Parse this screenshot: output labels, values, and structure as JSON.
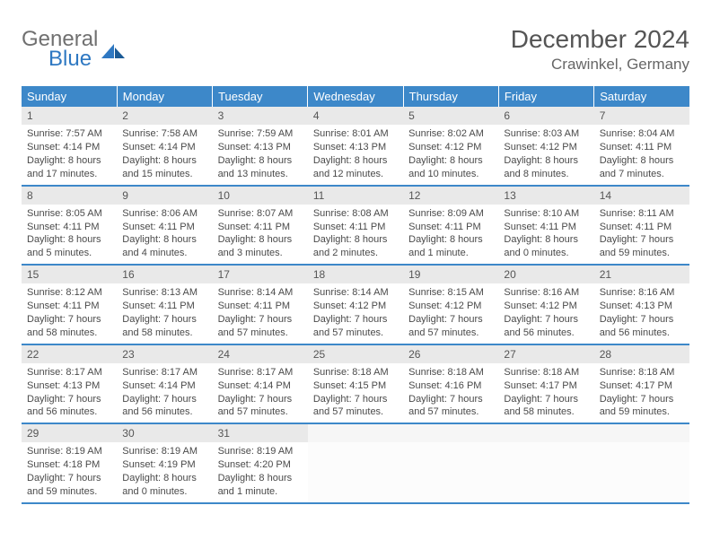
{
  "brand": {
    "general": "General",
    "blue": "Blue"
  },
  "title": "December 2024",
  "location": "Crawinkel, Germany",
  "colors": {
    "header_bg": "#3d88c9",
    "header_text": "#ffffff",
    "daynum_bg": "#e9e9e9",
    "text": "#4a4a4a",
    "logo_gray": "#707070",
    "logo_blue": "#2e78c2"
  },
  "weekdays": [
    "Sunday",
    "Monday",
    "Tuesday",
    "Wednesday",
    "Thursday",
    "Friday",
    "Saturday"
  ],
  "weeks": [
    [
      {
        "n": "1",
        "sr": "Sunrise: 7:57 AM",
        "ss": "Sunset: 4:14 PM",
        "d1": "Daylight: 8 hours",
        "d2": "and 17 minutes."
      },
      {
        "n": "2",
        "sr": "Sunrise: 7:58 AM",
        "ss": "Sunset: 4:14 PM",
        "d1": "Daylight: 8 hours",
        "d2": "and 15 minutes."
      },
      {
        "n": "3",
        "sr": "Sunrise: 7:59 AM",
        "ss": "Sunset: 4:13 PM",
        "d1": "Daylight: 8 hours",
        "d2": "and 13 minutes."
      },
      {
        "n": "4",
        "sr": "Sunrise: 8:01 AM",
        "ss": "Sunset: 4:13 PM",
        "d1": "Daylight: 8 hours",
        "d2": "and 12 minutes."
      },
      {
        "n": "5",
        "sr": "Sunrise: 8:02 AM",
        "ss": "Sunset: 4:12 PM",
        "d1": "Daylight: 8 hours",
        "d2": "and 10 minutes."
      },
      {
        "n": "6",
        "sr": "Sunrise: 8:03 AM",
        "ss": "Sunset: 4:12 PM",
        "d1": "Daylight: 8 hours",
        "d2": "and 8 minutes."
      },
      {
        "n": "7",
        "sr": "Sunrise: 8:04 AM",
        "ss": "Sunset: 4:11 PM",
        "d1": "Daylight: 8 hours",
        "d2": "and 7 minutes."
      }
    ],
    [
      {
        "n": "8",
        "sr": "Sunrise: 8:05 AM",
        "ss": "Sunset: 4:11 PM",
        "d1": "Daylight: 8 hours",
        "d2": "and 5 minutes."
      },
      {
        "n": "9",
        "sr": "Sunrise: 8:06 AM",
        "ss": "Sunset: 4:11 PM",
        "d1": "Daylight: 8 hours",
        "d2": "and 4 minutes."
      },
      {
        "n": "10",
        "sr": "Sunrise: 8:07 AM",
        "ss": "Sunset: 4:11 PM",
        "d1": "Daylight: 8 hours",
        "d2": "and 3 minutes."
      },
      {
        "n": "11",
        "sr": "Sunrise: 8:08 AM",
        "ss": "Sunset: 4:11 PM",
        "d1": "Daylight: 8 hours",
        "d2": "and 2 minutes."
      },
      {
        "n": "12",
        "sr": "Sunrise: 8:09 AM",
        "ss": "Sunset: 4:11 PM",
        "d1": "Daylight: 8 hours",
        "d2": "and 1 minute."
      },
      {
        "n": "13",
        "sr": "Sunrise: 8:10 AM",
        "ss": "Sunset: 4:11 PM",
        "d1": "Daylight: 8 hours",
        "d2": "and 0 minutes."
      },
      {
        "n": "14",
        "sr": "Sunrise: 8:11 AM",
        "ss": "Sunset: 4:11 PM",
        "d1": "Daylight: 7 hours",
        "d2": "and 59 minutes."
      }
    ],
    [
      {
        "n": "15",
        "sr": "Sunrise: 8:12 AM",
        "ss": "Sunset: 4:11 PM",
        "d1": "Daylight: 7 hours",
        "d2": "and 58 minutes."
      },
      {
        "n": "16",
        "sr": "Sunrise: 8:13 AM",
        "ss": "Sunset: 4:11 PM",
        "d1": "Daylight: 7 hours",
        "d2": "and 58 minutes."
      },
      {
        "n": "17",
        "sr": "Sunrise: 8:14 AM",
        "ss": "Sunset: 4:11 PM",
        "d1": "Daylight: 7 hours",
        "d2": "and 57 minutes."
      },
      {
        "n": "18",
        "sr": "Sunrise: 8:14 AM",
        "ss": "Sunset: 4:12 PM",
        "d1": "Daylight: 7 hours",
        "d2": "and 57 minutes."
      },
      {
        "n": "19",
        "sr": "Sunrise: 8:15 AM",
        "ss": "Sunset: 4:12 PM",
        "d1": "Daylight: 7 hours",
        "d2": "and 57 minutes."
      },
      {
        "n": "20",
        "sr": "Sunrise: 8:16 AM",
        "ss": "Sunset: 4:12 PM",
        "d1": "Daylight: 7 hours",
        "d2": "and 56 minutes."
      },
      {
        "n": "21",
        "sr": "Sunrise: 8:16 AM",
        "ss": "Sunset: 4:13 PM",
        "d1": "Daylight: 7 hours",
        "d2": "and 56 minutes."
      }
    ],
    [
      {
        "n": "22",
        "sr": "Sunrise: 8:17 AM",
        "ss": "Sunset: 4:13 PM",
        "d1": "Daylight: 7 hours",
        "d2": "and 56 minutes."
      },
      {
        "n": "23",
        "sr": "Sunrise: 8:17 AM",
        "ss": "Sunset: 4:14 PM",
        "d1": "Daylight: 7 hours",
        "d2": "and 56 minutes."
      },
      {
        "n": "24",
        "sr": "Sunrise: 8:17 AM",
        "ss": "Sunset: 4:14 PM",
        "d1": "Daylight: 7 hours",
        "d2": "and 57 minutes."
      },
      {
        "n": "25",
        "sr": "Sunrise: 8:18 AM",
        "ss": "Sunset: 4:15 PM",
        "d1": "Daylight: 7 hours",
        "d2": "and 57 minutes."
      },
      {
        "n": "26",
        "sr": "Sunrise: 8:18 AM",
        "ss": "Sunset: 4:16 PM",
        "d1": "Daylight: 7 hours",
        "d2": "and 57 minutes."
      },
      {
        "n": "27",
        "sr": "Sunrise: 8:18 AM",
        "ss": "Sunset: 4:17 PM",
        "d1": "Daylight: 7 hours",
        "d2": "and 58 minutes."
      },
      {
        "n": "28",
        "sr": "Sunrise: 8:18 AM",
        "ss": "Sunset: 4:17 PM",
        "d1": "Daylight: 7 hours",
        "d2": "and 59 minutes."
      }
    ],
    [
      {
        "n": "29",
        "sr": "Sunrise: 8:19 AM",
        "ss": "Sunset: 4:18 PM",
        "d1": "Daylight: 7 hours",
        "d2": "and 59 minutes."
      },
      {
        "n": "30",
        "sr": "Sunrise: 8:19 AM",
        "ss": "Sunset: 4:19 PM",
        "d1": "Daylight: 8 hours",
        "d2": "and 0 minutes."
      },
      {
        "n": "31",
        "sr": "Sunrise: 8:19 AM",
        "ss": "Sunset: 4:20 PM",
        "d1": "Daylight: 8 hours",
        "d2": "and 1 minute."
      },
      {
        "empty": true
      },
      {
        "empty": true
      },
      {
        "empty": true
      },
      {
        "empty": true
      }
    ]
  ]
}
